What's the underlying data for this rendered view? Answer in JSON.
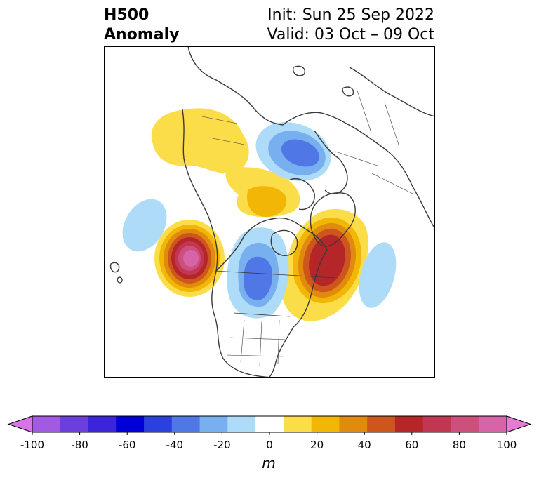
{
  "header": {
    "title_line1": "H500",
    "title_line2": "Anomaly",
    "init": "Init: Sun 25 Sep 2022",
    "valid": "Valid: 03 Oct – 09 Oct"
  },
  "map": {
    "projection": "polar stereographic (north)",
    "features": [
      {
        "name": "strong-positive-anomaly-northeast-pacific",
        "value_m": 100
      },
      {
        "name": "positive-anomaly-eastern-canada-atlantic",
        "value_m": 70
      },
      {
        "name": "negative-anomaly-central-us-canada",
        "value_m": -60
      },
      {
        "name": "negative-anomaly-northern-europe",
        "value_m": -50
      },
      {
        "name": "positive-anomaly-alaska-siberia",
        "value_m": 20
      },
      {
        "name": "positive-anomaly-arctic",
        "value_m": 30
      },
      {
        "name": "negative-anomaly-north-pacific",
        "value_m": -20
      },
      {
        "name": "negative-anomaly-central-atlantic",
        "value_m": -20
      }
    ]
  },
  "colorbar": {
    "unit_label": "m",
    "ticks": [
      "-100",
      "-80",
      "-60",
      "-40",
      "-20",
      "0",
      "20",
      "40",
      "60",
      "80",
      "100"
    ],
    "colors": [
      "#d674e8",
      "#a35ae3",
      "#6b3fdc",
      "#3c25d8",
      "#0000d6",
      "#2b41de",
      "#4f78e6",
      "#78afef",
      "#aedcf8",
      "#ffffff",
      "#fbdd4a",
      "#f2b706",
      "#e08b0e",
      "#cc561c",
      "#b52628",
      "#c13652",
      "#cc4f7c",
      "#d664a6",
      "#e47cd4"
    ]
  }
}
